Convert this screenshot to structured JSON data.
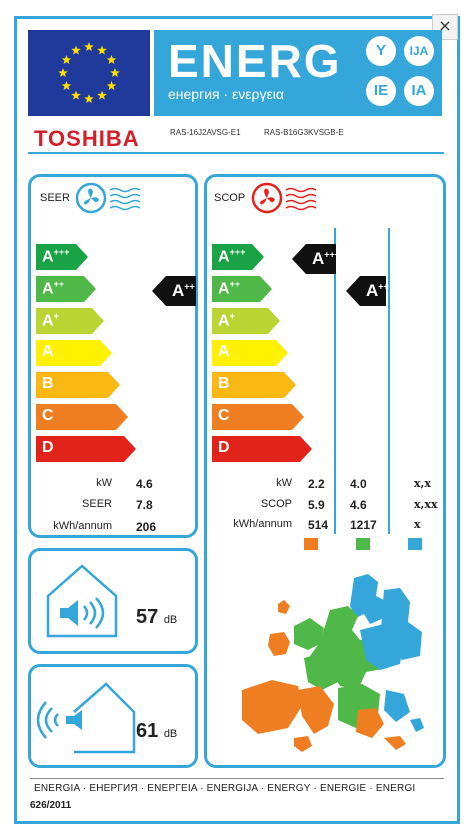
{
  "dialog": {
    "close_label": "×"
  },
  "header": {
    "energy_word": "ENERG",
    "energy_sub": "енергия · ενεργεια",
    "suffixes": [
      "Y",
      "IJA",
      "IE",
      "IA"
    ]
  },
  "brand": "TOSHIBA",
  "models": {
    "indoor": "RAS-16J2AVSG-E1",
    "outdoor": "RAS-B16G3KVSGB-E"
  },
  "classes": [
    {
      "letter": "A",
      "sup": "+++",
      "color": "#1aa246"
    },
    {
      "letter": "A",
      "sup": "++",
      "color": "#4fb848"
    },
    {
      "letter": "A",
      "sup": "+",
      "color": "#b9d433"
    },
    {
      "letter": "A",
      "sup": "",
      "color": "#fff100"
    },
    {
      "letter": "B",
      "sup": "",
      "color": "#fbb813"
    },
    {
      "letter": "C",
      "sup": "",
      "color": "#ef7d22"
    },
    {
      "letter": "D",
      "sup": "",
      "color": "#e2231a"
    }
  ],
  "cooling": {
    "title": "SEER",
    "rating": {
      "letter": "A",
      "sup": "++"
    },
    "rows": [
      {
        "label": "kW",
        "value": "4.6"
      },
      {
        "label": "SEER",
        "value": "7.8"
      },
      {
        "label": "kWh/annum",
        "value": "206"
      }
    ]
  },
  "heating": {
    "title": "SCOP",
    "ratings": [
      {
        "letter": "A",
        "sup": "+++"
      },
      {
        "letter": "A",
        "sup": "++"
      }
    ],
    "labels": [
      "kW",
      "SCOP",
      "kWh/annum"
    ],
    "columns": [
      {
        "values": [
          "2.2",
          "5.9",
          "514"
        ],
        "color": "#ef7d22"
      },
      {
        "values": [
          "4.0",
          "4.6",
          "1217"
        ],
        "color": "#4fb848"
      },
      {
        "values": [
          "x,x",
          "x,xx",
          "x"
        ],
        "color": "#34a6d9"
      }
    ]
  },
  "noise": {
    "indoor": {
      "value": "57",
      "unit": "dB"
    },
    "outdoor": {
      "value": "61",
      "unit": "dB"
    }
  },
  "footer": {
    "languages": "ENERGIA · ЕНЕРГИЯ · ΕΝΕΡΓΕΙΑ · ENERGIJA · ENERGY · ENERGIE · ENERGI",
    "regulation": "626/2011"
  }
}
